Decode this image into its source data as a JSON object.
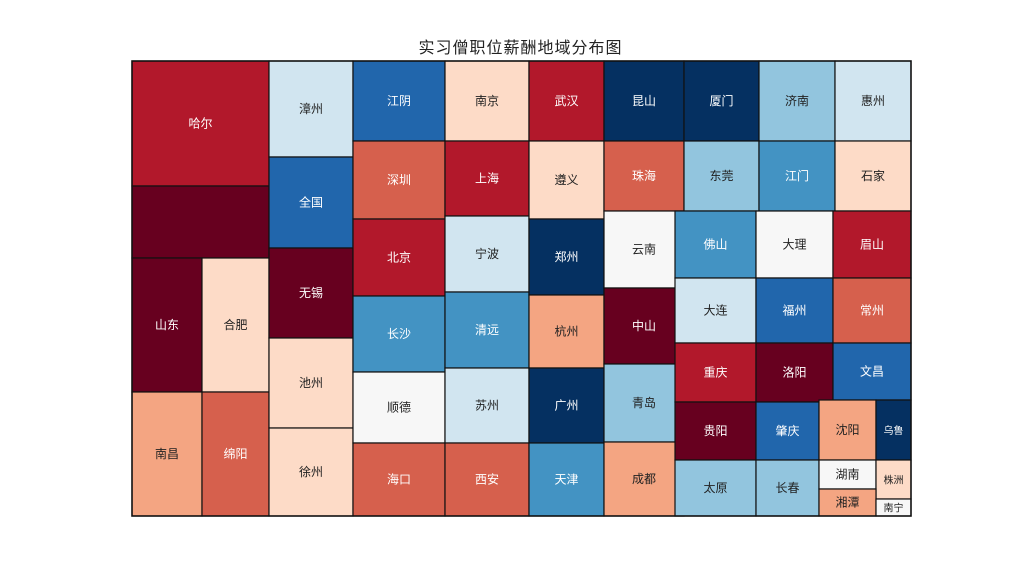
{
  "chart_data": {
    "type": "treemap",
    "title": "实习僧职位薪酬地域分布图",
    "colors": {
      "dark_red": "#67001f",
      "red": "#b2182b",
      "mid_red": "#d6604d",
      "salmon": "#f4a582",
      "peach": "#fddbc7",
      "white": "#f7f7f7",
      "light_blue": "#d1e5f0",
      "sky": "#92c5de",
      "mid_blue": "#4393c3",
      "blue": "#2166ac",
      "navy": "#053061"
    },
    "tiles": [
      {
        "label": "哈尔",
        "color": "red"
      },
      {
        "label": "",
        "color": "dark_red"
      },
      {
        "label": "山东",
        "color": "dark_red"
      },
      {
        "label": "合肥",
        "color": "peach"
      },
      {
        "label": "南昌",
        "color": "salmon"
      },
      {
        "label": "绵阳",
        "color": "mid_red"
      },
      {
        "label": "漳州",
        "color": "light_blue"
      },
      {
        "label": "全国",
        "color": "blue"
      },
      {
        "label": "无锡",
        "color": "dark_red"
      },
      {
        "label": "池州",
        "color": "peach"
      },
      {
        "label": "徐州",
        "color": "peach"
      },
      {
        "label": "江阴",
        "color": "blue"
      },
      {
        "label": "深圳",
        "color": "mid_red"
      },
      {
        "label": "北京",
        "color": "red"
      },
      {
        "label": "长沙",
        "color": "mid_blue"
      },
      {
        "label": "顺德",
        "color": "white"
      },
      {
        "label": "海口",
        "color": "mid_red"
      },
      {
        "label": "南京",
        "color": "peach"
      },
      {
        "label": "上海",
        "color": "red"
      },
      {
        "label": "宁波",
        "color": "light_blue"
      },
      {
        "label": "清远",
        "color": "mid_blue"
      },
      {
        "label": "苏州",
        "color": "light_blue"
      },
      {
        "label": "西安",
        "color": "mid_red"
      },
      {
        "label": "武汉",
        "color": "red"
      },
      {
        "label": "遵义",
        "color": "peach"
      },
      {
        "label": "郑州",
        "color": "navy"
      },
      {
        "label": "杭州",
        "color": "salmon"
      },
      {
        "label": "广州",
        "color": "navy"
      },
      {
        "label": "天津",
        "color": "mid_blue"
      },
      {
        "label": "昆山",
        "color": "navy"
      },
      {
        "label": "珠海",
        "color": "mid_red"
      },
      {
        "label": "云南",
        "color": "white"
      },
      {
        "label": "中山",
        "color": "dark_red"
      },
      {
        "label": "青岛",
        "color": "sky"
      },
      {
        "label": "成都",
        "color": "salmon"
      },
      {
        "label": "厦门",
        "color": "navy"
      },
      {
        "label": "东莞",
        "color": "sky"
      },
      {
        "label": "佛山",
        "color": "mid_blue"
      },
      {
        "label": "大连",
        "color": "light_blue"
      },
      {
        "label": "重庆",
        "color": "red"
      },
      {
        "label": "贵阳",
        "color": "dark_red"
      },
      {
        "label": "太原",
        "color": "sky"
      },
      {
        "label": "济南",
        "color": "sky"
      },
      {
        "label": "江门",
        "color": "mid_blue"
      },
      {
        "label": "大理",
        "color": "white"
      },
      {
        "label": "福州",
        "color": "blue"
      },
      {
        "label": "洛阳",
        "color": "dark_red"
      },
      {
        "label": "肇庆",
        "color": "blue"
      },
      {
        "label": "长春",
        "color": "sky"
      },
      {
        "label": "惠州",
        "color": "light_blue"
      },
      {
        "label": "石家",
        "color": "peach"
      },
      {
        "label": "眉山",
        "color": "red"
      },
      {
        "label": "常州",
        "color": "mid_red"
      },
      {
        "label": "文昌",
        "color": "blue"
      },
      {
        "label": "沈阳",
        "color": "salmon"
      },
      {
        "label": "乌鲁",
        "color": "navy"
      },
      {
        "label": "湖南",
        "color": "white"
      },
      {
        "label": "株洲",
        "color": "peach"
      },
      {
        "label": "湘潭",
        "color": "salmon"
      },
      {
        "label": "南宁",
        "color": "white"
      }
    ]
  }
}
